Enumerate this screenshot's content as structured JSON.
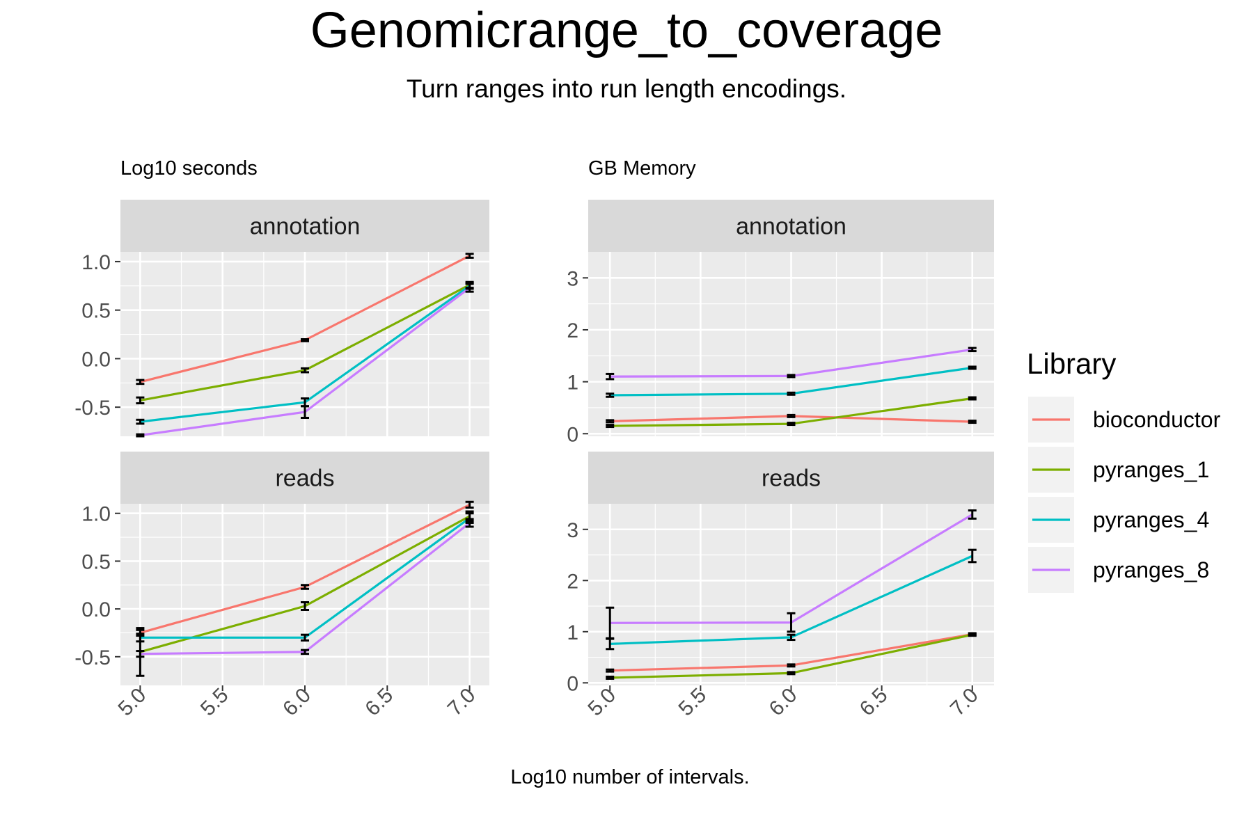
{
  "chart_data": {
    "type": "line",
    "title": "Genomicrange_to_coverage",
    "subtitle": "Turn ranges into run length encodings.",
    "xlabel": "Log10 number of intervals.",
    "x": [
      5.0,
      6.0,
      7.0
    ],
    "x_ticks": [
      "5.0",
      "5.5",
      "6.0",
      "6.5",
      "7.0"
    ],
    "legend": {
      "title": "Library",
      "position": "right",
      "entries": [
        {
          "name": "bioconductor",
          "color": "#F8766D"
        },
        {
          "name": "pyranges_1",
          "color": "#7CAE00"
        },
        {
          "name": "pyranges_4",
          "color": "#00BFC4"
        },
        {
          "name": "pyranges_8",
          "color": "#C77CFF"
        }
      ]
    },
    "panels": [
      {
        "ylabel": "Log10 seconds",
        "ylim": [
          -0.8,
          1.1
        ],
        "y_ticks": [
          "-0.5",
          "0.0",
          "0.5",
          "1.0"
        ],
        "facets": [
          {
            "strip": "annotation",
            "series": [
              {
                "name": "bioconductor",
                "y": [
                  -0.24,
                  0.19,
                  1.06
                ],
                "err": [
                  0.02,
                  0.01,
                  0.02
                ]
              },
              {
                "name": "pyranges_1",
                "y": [
                  -0.43,
                  -0.12,
                  0.76
                ],
                "err": [
                  0.03,
                  0.02,
                  0.03
                ]
              },
              {
                "name": "pyranges_4",
                "y": [
                  -0.65,
                  -0.45,
                  0.75
                ],
                "err": [
                  0.02,
                  0.04,
                  0.03
                ]
              },
              {
                "name": "pyranges_8",
                "y": [
                  -0.79,
                  -0.55,
                  0.73
                ],
                "err": [
                  0.01,
                  0.06,
                  0.04
                ]
              }
            ]
          },
          {
            "strip": "reads",
            "series": [
              {
                "name": "bioconductor",
                "y": [
                  -0.25,
                  0.23,
                  1.09
                ],
                "err": [
                  0.03,
                  0.02,
                  0.03
                ]
              },
              {
                "name": "pyranges_1",
                "y": [
                  -0.45,
                  0.03,
                  0.97
                ],
                "err": [
                  0.25,
                  0.04,
                  0.05
                ]
              },
              {
                "name": "pyranges_4",
                "y": [
                  -0.3,
                  -0.3,
                  0.95
                ],
                "err": [
                  0.04,
                  0.03,
                  0.05
                ]
              },
              {
                "name": "pyranges_8",
                "y": [
                  -0.47,
                  -0.45,
                  0.9
                ],
                "err": [
                  0.03,
                  0.02,
                  0.04
                ]
              }
            ]
          }
        ]
      },
      {
        "ylabel": "GB Memory",
        "ylim": [
          -0.05,
          3.5
        ],
        "y_ticks": [
          "0",
          "1",
          "2",
          "3"
        ],
        "facets": [
          {
            "strip": "annotation",
            "series": [
              {
                "name": "bioconductor",
                "y": [
                  0.24,
                  0.34,
                  0.23
                ],
                "err": [
                  0.02,
                  0.02,
                  0.02
                ]
              },
              {
                "name": "pyranges_1",
                "y": [
                  0.15,
                  0.19,
                  0.68
                ],
                "err": [
                  0.02,
                  0.02,
                  0.02
                ]
              },
              {
                "name": "pyranges_4",
                "y": [
                  0.74,
                  0.77,
                  1.27
                ],
                "err": [
                  0.03,
                  0.02,
                  0.02
                ]
              },
              {
                "name": "pyranges_8",
                "y": [
                  1.1,
                  1.11,
                  1.62
                ],
                "err": [
                  0.05,
                  0.02,
                  0.03
                ]
              }
            ]
          },
          {
            "strip": "reads",
            "series": [
              {
                "name": "bioconductor",
                "y": [
                  0.24,
                  0.34,
                  0.95
                ],
                "err": [
                  0.02,
                  0.02,
                  0.02
                ]
              },
              {
                "name": "pyranges_1",
                "y": [
                  0.1,
                  0.19,
                  0.94
                ],
                "err": [
                  0.02,
                  0.02,
                  0.02
                ]
              },
              {
                "name": "pyranges_4",
                "y": [
                  0.76,
                  0.89,
                  2.48
                ],
                "err": [
                  0.1,
                  0.05,
                  0.12
                ]
              },
              {
                "name": "pyranges_8",
                "y": [
                  1.17,
                  1.18,
                  3.29
                ],
                "err": [
                  0.3,
                  0.18,
                  0.08
                ]
              }
            ]
          }
        ]
      }
    ]
  }
}
